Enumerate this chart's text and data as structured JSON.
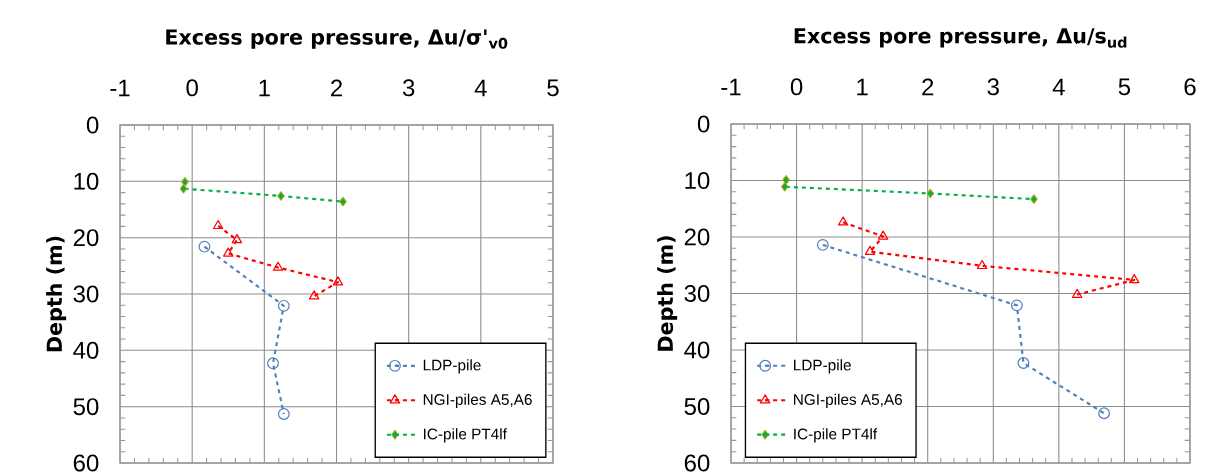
{
  "chart_data": [
    {
      "type": "line",
      "xlabel": "Excess pore pressure, Δu/σ'$_{v0}$",
      "ylabel": "Depth (m)",
      "xlim": [
        -1,
        5
      ],
      "xticks": [
        -1,
        0,
        1,
        2,
        3,
        4,
        5
      ],
      "ylim": [
        60,
        0
      ],
      "yticks": [
        0,
        10,
        20,
        30,
        40,
        50,
        60
      ],
      "grid": true,
      "legend": "bottom right",
      "line_style": "dashed",
      "series": [
        {
          "name": "LDP-pile",
          "color": "#4f81bd",
          "marker": "circle",
          "x": [
            0.17,
            1.27,
            1.12,
            1.27
          ],
          "values": [
            21.6,
            32.1,
            42.3,
            51.3
          ]
        },
        {
          "name": "NGI-piles A5,A6",
          "color": "#ff0000",
          "marker": "triangle",
          "x": [
            0.36,
            0.62,
            0.5,
            1.19,
            2.02,
            1.69
          ],
          "values": [
            17.9,
            20.4,
            22.8,
            25.3,
            27.9,
            30.4
          ]
        },
        {
          "name": "IC-pile PT4lf",
          "color": "#00b050",
          "marker": "diamond",
          "x": [
            -0.1,
            -0.12,
            1.23,
            2.09
          ],
          "values": [
            10.1,
            11.3,
            12.6,
            13.6
          ]
        }
      ]
    },
    {
      "type": "line",
      "xlabel": "Excess pore pressure, Δu/s$_{ud}$",
      "ylabel": "Depth (m)",
      "xlim": [
        -1,
        6
      ],
      "xticks": [
        -1,
        0,
        1,
        2,
        3,
        4,
        5,
        6
      ],
      "ylim": [
        60,
        0
      ],
      "yticks": [
        0,
        10,
        20,
        30,
        40,
        50,
        60
      ],
      "grid": true,
      "legend": "bottom left",
      "line_style": "dashed",
      "series": [
        {
          "name": "LDP-pile",
          "color": "#4f81bd",
          "marker": "circle",
          "x": [
            0.4,
            3.36,
            3.46,
            4.69
          ],
          "values": [
            21.4,
            32.1,
            42.3,
            51.2
          ]
        },
        {
          "name": "NGI-piles A5,A6",
          "color": "#ff0000",
          "marker": "triangle",
          "x": [
            0.71,
            1.32,
            1.12,
            2.83,
            5.15,
            4.28
          ],
          "values": [
            17.4,
            19.9,
            22.6,
            25.1,
            27.6,
            30.2
          ]
        },
        {
          "name": "IC-pile PT4lf",
          "color": "#00b050",
          "marker": "diamond",
          "x": [
            -0.16,
            -0.18,
            2.04,
            3.62
          ],
          "values": [
            9.9,
            11.1,
            12.3,
            13.3
          ]
        }
      ]
    }
  ]
}
